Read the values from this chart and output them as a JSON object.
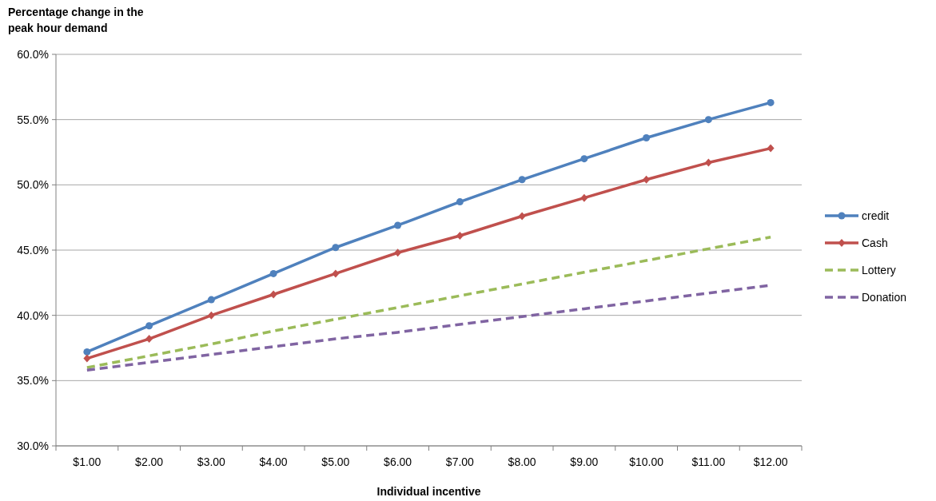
{
  "chart_data": {
    "type": "line",
    "ylabel": "Percentage change in the peak hour demand",
    "xlabel": "Individual incentive",
    "categories": [
      "$1.00",
      "$2.00",
      "$3.00",
      "$4.00",
      "$5.00",
      "$6.00",
      "$7.00",
      "$8.00",
      "$9.00",
      "$10.00",
      "$11.00",
      "$12.00"
    ],
    "ylim": [
      30,
      60
    ],
    "yticks": [
      {
        "value": 30,
        "label": "30.0%"
      },
      {
        "value": 35,
        "label": "35.0%"
      },
      {
        "value": 40,
        "label": "40.0%"
      },
      {
        "value": 45,
        "label": "45.0%"
      },
      {
        "value": 50,
        "label": "50.0%"
      },
      {
        "value": 55,
        "label": "55.0%"
      },
      {
        "value": 60,
        "label": "60.0%"
      }
    ],
    "grid": "y",
    "legend": "right",
    "series": [
      {
        "name": "credit",
        "color": "#4f81bd",
        "marker": "circle",
        "line_style": "solid",
        "values": [
          37.2,
          39.2,
          41.2,
          43.2,
          45.2,
          46.9,
          48.7,
          50.4,
          52.0,
          53.6,
          55.0,
          56.3
        ]
      },
      {
        "name": "Cash",
        "color": "#c0504d",
        "marker": "diamond",
        "line_style": "solid",
        "values": [
          36.7,
          38.2,
          40.0,
          41.6,
          43.2,
          44.8,
          46.1,
          47.6,
          49.0,
          50.4,
          51.7,
          52.8
        ]
      },
      {
        "name": "Lottery",
        "color": "#9bbb59",
        "marker": "none",
        "line_style": "dashed",
        "values": [
          36.0,
          36.9,
          37.8,
          38.8,
          39.7,
          40.6,
          41.5,
          42.4,
          43.3,
          44.2,
          45.1,
          46.0
        ]
      },
      {
        "name": "Donation",
        "color": "#8064a2",
        "marker": "none",
        "line_style": "dashed",
        "values": [
          35.8,
          36.4,
          37.0,
          37.6,
          38.2,
          38.7,
          39.3,
          39.9,
          40.5,
          41.1,
          41.7,
          42.3
        ]
      }
    ]
  }
}
